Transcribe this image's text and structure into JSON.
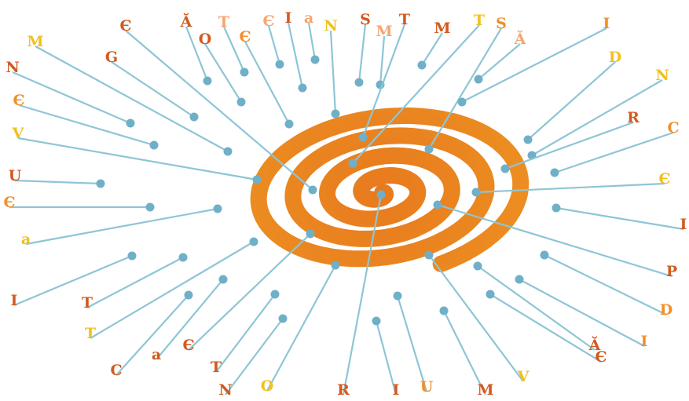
{
  "palette": {
    "spiral_outer": "#f0a224",
    "spiral_inner": "#e87a1e",
    "leader": "#8ec5d6",
    "dot": "#6fb0c8",
    "letter_red": "#d25a1f",
    "letter_orange": "#f0902a",
    "letter_yellow": "#f2c01e",
    "letter_peach": "#f4a673"
  },
  "labels": [
    {
      "text": "Є",
      "color": "letter_red"
    },
    {
      "text": "Ӑ",
      "color": "letter_red"
    },
    {
      "text": "O",
      "color": "letter_red"
    },
    {
      "text": "T",
      "color": "letter_peach"
    },
    {
      "text": "Є",
      "color": "letter_orange"
    },
    {
      "text": "Є",
      "color": "letter_peach"
    },
    {
      "text": "I",
      "color": "letter_red"
    },
    {
      "text": "a",
      "color": "letter_peach"
    },
    {
      "text": "N",
      "color": "letter_yellow"
    },
    {
      "text": "S",
      "color": "letter_red"
    },
    {
      "text": "M",
      "color": "letter_peach"
    },
    {
      "text": "T",
      "color": "letter_red"
    },
    {
      "text": "M",
      "color": "letter_red"
    },
    {
      "text": "T",
      "color": "letter_yellow"
    },
    {
      "text": "S",
      "color": "letter_orange"
    },
    {
      "text": "Ӑ",
      "color": "letter_peach"
    },
    {
      "text": "I",
      "color": "letter_orange"
    },
    {
      "text": "M",
      "color": "letter_yellow"
    },
    {
      "text": "G",
      "color": "letter_red"
    },
    {
      "text": "D",
      "color": "letter_yellow"
    },
    {
      "text": "N",
      "color": "letter_red"
    },
    {
      "text": "N",
      "color": "letter_yellow"
    },
    {
      "text": "Є",
      "color": "letter_orange"
    },
    {
      "text": "R",
      "color": "letter_red"
    },
    {
      "text": "V",
      "color": "letter_yellow"
    },
    {
      "text": "C",
      "color": "letter_orange"
    },
    {
      "text": "U",
      "color": "letter_red"
    },
    {
      "text": "Є",
      "color": "letter_yellow"
    },
    {
      "text": "Є",
      "color": "letter_orange"
    },
    {
      "text": "I",
      "color": "letter_red"
    },
    {
      "text": "a",
      "color": "letter_yellow"
    },
    {
      "text": "P",
      "color": "letter_red"
    },
    {
      "text": "I",
      "color": "letter_red"
    },
    {
      "text": "D",
      "color": "letter_orange"
    },
    {
      "text": "T",
      "color": "letter_red"
    },
    {
      "text": "I",
      "color": "letter_orange"
    },
    {
      "text": "T",
      "color": "letter_yellow"
    },
    {
      "text": "Ӑ",
      "color": "letter_red"
    },
    {
      "text": "C",
      "color": "letter_red"
    },
    {
      "text": "Є",
      "color": "letter_red"
    },
    {
      "text": "a",
      "color": "letter_red"
    },
    {
      "text": "V",
      "color": "letter_yellow"
    },
    {
      "text": "Є",
      "color": "letter_red"
    },
    {
      "text": "T",
      "color": "letter_red"
    },
    {
      "text": "M",
      "color": "letter_red"
    },
    {
      "text": "N",
      "color": "letter_red"
    },
    {
      "text": "O",
      "color": "letter_yellow"
    },
    {
      "text": "R",
      "color": "letter_red"
    },
    {
      "text": "I",
      "color": "letter_red"
    },
    {
      "text": "U",
      "color": "letter_orange"
    }
  ]
}
